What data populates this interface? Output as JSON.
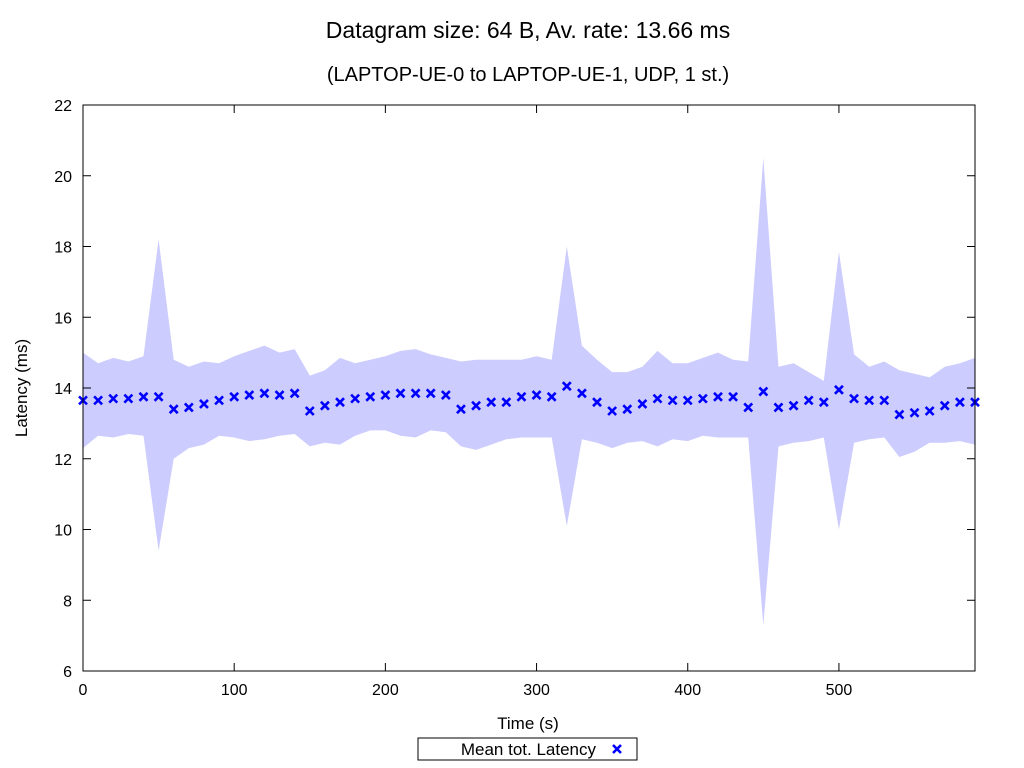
{
  "chart_data": {
    "type": "scatter",
    "title": "Datagram size: 64 B, Av. rate: 13.66 ms",
    "subtitle": "(LAPTOP-UE-0 to LAPTOP-UE-1, UDP, 1 st.)",
    "xlabel": "Time (s)",
    "ylabel": "Latency (ms)",
    "xlim": [
      0,
      590
    ],
    "ylim": [
      6,
      22
    ],
    "xticks": [
      0,
      100,
      200,
      300,
      400,
      500
    ],
    "yticks": [
      6,
      8,
      10,
      12,
      14,
      16,
      18,
      20,
      22
    ],
    "grid": false,
    "legend_position": "bottom-center",
    "colors": {
      "band": "#ccccff",
      "marker": "#0000ff",
      "axis": "#000000"
    },
    "series": [
      {
        "name": "Mean tot. Latency",
        "x": [
          0,
          10,
          20,
          30,
          40,
          50,
          60,
          70,
          80,
          90,
          100,
          110,
          120,
          130,
          140,
          150,
          160,
          170,
          180,
          190,
          200,
          210,
          220,
          230,
          240,
          250,
          260,
          270,
          280,
          290,
          300,
          310,
          320,
          330,
          340,
          350,
          360,
          370,
          380,
          390,
          400,
          410,
          420,
          430,
          440,
          450,
          460,
          470,
          480,
          490,
          500,
          510,
          520,
          530,
          540,
          550,
          560,
          570,
          580,
          590
        ],
        "y": [
          13.65,
          13.65,
          13.7,
          13.7,
          13.75,
          13.75,
          13.4,
          13.45,
          13.55,
          13.65,
          13.75,
          13.8,
          13.85,
          13.8,
          13.85,
          13.35,
          13.5,
          13.6,
          13.7,
          13.75,
          13.8,
          13.85,
          13.85,
          13.85,
          13.8,
          13.4,
          13.5,
          13.6,
          13.6,
          13.75,
          13.8,
          13.75,
          14.05,
          13.85,
          13.6,
          13.35,
          13.4,
          13.55,
          13.7,
          13.65,
          13.65,
          13.7,
          13.75,
          13.75,
          13.45,
          13.9,
          13.45,
          13.5,
          13.65,
          13.6,
          13.95,
          13.7,
          13.65,
          13.65,
          13.25,
          13.3,
          13.35,
          13.5,
          13.6,
          13.6
        ],
        "band_upper": [
          15.0,
          14.7,
          14.85,
          14.75,
          14.9,
          18.2,
          14.8,
          14.6,
          14.75,
          14.7,
          14.9,
          15.05,
          15.2,
          15.0,
          15.1,
          14.35,
          14.5,
          14.85,
          14.7,
          14.8,
          14.9,
          15.05,
          15.1,
          14.95,
          14.85,
          14.75,
          14.8,
          14.8,
          14.8,
          14.8,
          14.9,
          14.8,
          18.0,
          15.2,
          14.8,
          14.45,
          14.45,
          14.6,
          15.05,
          14.7,
          14.7,
          14.85,
          15.0,
          14.8,
          14.75,
          20.5,
          14.6,
          14.7,
          14.45,
          14.2,
          17.85,
          14.95,
          14.6,
          14.75,
          14.5,
          14.4,
          14.3,
          14.6,
          14.7,
          14.85
        ],
        "band_lower": [
          12.3,
          12.65,
          12.6,
          12.7,
          12.65,
          9.4,
          12.0,
          12.3,
          12.4,
          12.65,
          12.6,
          12.5,
          12.55,
          12.65,
          12.7,
          12.35,
          12.45,
          12.4,
          12.65,
          12.8,
          12.8,
          12.65,
          12.6,
          12.8,
          12.75,
          12.35,
          12.25,
          12.4,
          12.55,
          12.6,
          12.6,
          12.6,
          10.1,
          12.55,
          12.45,
          12.3,
          12.45,
          12.5,
          12.35,
          12.55,
          12.5,
          12.65,
          12.6,
          12.6,
          12.6,
          7.3,
          12.35,
          12.45,
          12.5,
          12.6,
          10.0,
          12.45,
          12.55,
          12.6,
          12.05,
          12.2,
          12.45,
          12.45,
          12.5,
          12.4
        ]
      }
    ]
  }
}
